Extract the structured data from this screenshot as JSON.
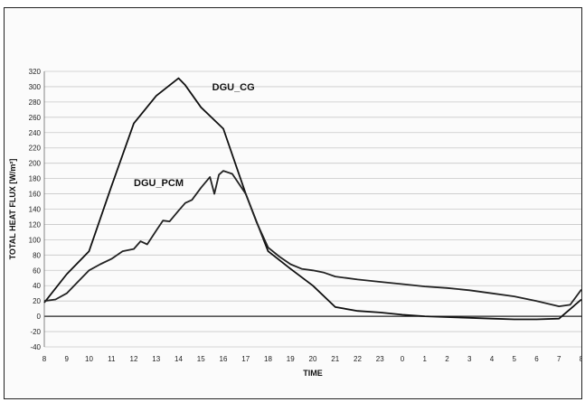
{
  "chart_data": {
    "type": "line",
    "xlabel": "TIME",
    "ylabel": "TOTAL HEAT FLUX [W/m²]",
    "ylim": [
      -40,
      320
    ],
    "y_ticks": [
      -40,
      -20,
      0,
      20,
      40,
      60,
      80,
      100,
      120,
      140,
      160,
      180,
      200,
      220,
      240,
      260,
      280,
      300,
      320
    ],
    "categories": [
      "8",
      "9",
      "10",
      "11",
      "12",
      "13",
      "14",
      "15",
      "16",
      "17",
      "18",
      "19",
      "20",
      "21",
      "22",
      "23",
      "0",
      "1",
      "2",
      "3",
      "4",
      "5",
      "6",
      "7",
      "8"
    ],
    "grid": "horizontal",
    "series": [
      {
        "name": "DGU_CG",
        "color": "#111111",
        "points": [
          [
            0,
            18
          ],
          [
            1,
            55
          ],
          [
            2,
            85
          ],
          [
            3,
            170
          ],
          [
            4,
            252
          ],
          [
            5,
            288
          ],
          [
            6,
            311
          ],
          [
            6.3,
            302
          ],
          [
            7,
            273
          ],
          [
            8,
            245
          ],
          [
            9,
            160
          ],
          [
            10,
            85
          ],
          [
            11,
            62
          ],
          [
            12,
            40
          ],
          [
            13,
            12
          ],
          [
            14,
            7
          ],
          [
            15,
            5
          ],
          [
            16,
            2
          ],
          [
            17,
            0
          ],
          [
            18,
            -1
          ],
          [
            19,
            -2
          ],
          [
            20,
            -3
          ],
          [
            21,
            -4
          ],
          [
            22,
            -4
          ],
          [
            23,
            -3
          ],
          [
            24,
            22
          ]
        ]
      },
      {
        "name": "DGU_PCM",
        "color": "#222222",
        "points": [
          [
            0,
            20
          ],
          [
            0.5,
            22
          ],
          [
            1,
            30
          ],
          [
            1.5,
            45
          ],
          [
            2,
            60
          ],
          [
            2.5,
            68
          ],
          [
            3,
            75
          ],
          [
            3.5,
            85
          ],
          [
            4,
            88
          ],
          [
            4.3,
            98
          ],
          [
            4.6,
            94
          ],
          [
            5,
            112
          ],
          [
            5.3,
            125
          ],
          [
            5.6,
            124
          ],
          [
            6,
            138
          ],
          [
            6.3,
            148
          ],
          [
            6.6,
            152
          ],
          [
            7,
            168
          ],
          [
            7.4,
            182
          ],
          [
            7.6,
            160
          ],
          [
            7.8,
            185
          ],
          [
            8,
            190
          ],
          [
            8.4,
            186
          ],
          [
            9,
            160
          ],
          [
            9.5,
            122
          ],
          [
            10,
            90
          ],
          [
            10.5,
            78
          ],
          [
            11,
            68
          ],
          [
            11.5,
            62
          ],
          [
            12,
            60
          ],
          [
            12.5,
            57
          ],
          [
            13,
            52
          ],
          [
            14,
            48
          ],
          [
            15,
            45
          ],
          [
            16,
            42
          ],
          [
            17,
            39
          ],
          [
            18,
            37
          ],
          [
            19,
            34
          ],
          [
            20,
            30
          ],
          [
            21,
            26
          ],
          [
            22,
            20
          ],
          [
            23,
            13
          ],
          [
            23.5,
            15
          ],
          [
            24,
            35
          ]
        ]
      }
    ],
    "annotations": [
      {
        "text": "DGU_CG",
        "x": 7.5,
        "y": 295
      },
      {
        "text": "DGU_PCM",
        "x": 4.0,
        "y": 170
      }
    ]
  }
}
